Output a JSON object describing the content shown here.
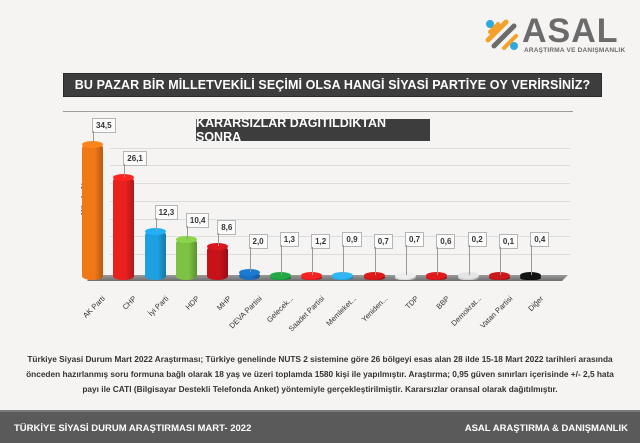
{
  "logo": {
    "name": "ASAL",
    "subtitle": "ARAŞTIRMA VE DANIŞMANLIK",
    "colors": [
      "#2fa8e0",
      "#f4a12a",
      "#6b6b6b"
    ]
  },
  "header": {
    "title": "BU PAZAR BİR MİLLETVEKİLİ SEÇİMİ OLSA HANGİ SİYASİ PARTİYE OY VERİRSİNİZ?",
    "subtitle": "KARARSIZLAR DAĞITILDIKTAN SONRA"
  },
  "chart_data": {
    "type": "bar",
    "title": "BU PAZAR BİR MİLLETVEKİLİ SEÇİMİ OLSA HANGİ SİYASİ PARTİYE OY VERİRSİNİZ?",
    "subtitle": "KARARSIZLAR DAĞITILDIKTAN SONRA",
    "xlabel": "",
    "ylabel": "Yüzde %",
    "ylim": [
      0,
      40
    ],
    "grid": true,
    "legend": "none",
    "categories": [
      "AK Parti",
      "CHP",
      "İyi Parti",
      "HDP",
      "MHP",
      "DEVA Partisi",
      "Gelecek...",
      "Saadet Partisi",
      "Memleket...",
      "Yeniden...",
      "TDP",
      "BBP",
      "Demokrat...",
      "Vatan Partisi",
      "Diğer"
    ],
    "values": [
      34.5,
      26.1,
      12.3,
      10.4,
      8.6,
      2.0,
      1.3,
      1.2,
      0.9,
      0.7,
      0.7,
      0.6,
      0.2,
      0.1,
      0.4
    ],
    "value_labels": [
      "34,5",
      "26,1",
      "12,3",
      "10,4",
      "8,6",
      "2,0",
      "1,3",
      "1,2",
      "0,9",
      "0,7",
      "0,7",
      "0,6",
      "0,2",
      "0,1",
      "0,4"
    ],
    "colors": [
      "#f07816",
      "#e8201e",
      "#1ea0e0",
      "#7dc242",
      "#c8121a",
      "#1a6fc0",
      "#1f9a3e",
      "#e02020",
      "#2aa6de",
      "#c81818",
      "#d8d8d8",
      "#cc1818",
      "#cfcfcf",
      "#b81818",
      "#111111"
    ]
  },
  "notes": {
    "text": "Türkiye Siyasi Durum Mart 2022 Araştırması; Türkiye genelinde NUTS 2 sistemine göre 26 bölgeyi esas alan 28 ilde  15-18 Mart 2022 tarihleri arasında önceden hazırlanmış soru formuna bağlı olarak 18 yaş ve üzeri toplamda 1580 kişi ile yapılmıştır. Araştırma; 0,95 güven sınırları içerisinde +/- 2,5 hata payı ile CATI (Bilgisayar Destekli Telefonda Anket) yöntemiyle gerçekleştirilmiştir. Kararsızlar oransal olarak dağıtılmıştır."
  },
  "footer": {
    "left": "TÜRKİYE SİYASİ DURUM ARAŞTIRMASI MART- 2022",
    "right": "ASAL ARAŞTIRMA & DANIŞMANLIK"
  }
}
